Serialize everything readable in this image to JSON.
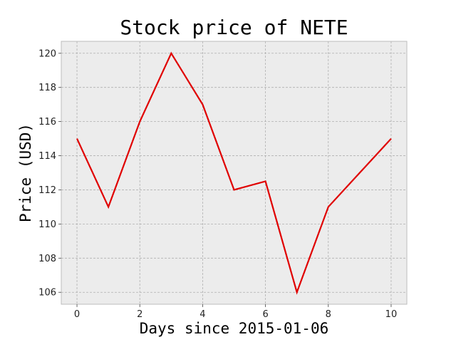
{
  "chart_data": {
    "type": "line",
    "title": "Stock price of NETE",
    "xlabel": "Days since 2015-01-06",
    "ylabel": "Price (USD)",
    "xlim": [
      -0.5,
      10.5
    ],
    "ylim": [
      105.3,
      120.7
    ],
    "xticks": [
      0,
      2,
      4,
      6,
      8,
      10
    ],
    "yticks": [
      106,
      108,
      110,
      112,
      114,
      116,
      118,
      120
    ],
    "grid": true,
    "series": [
      {
        "x": [
          0,
          1,
          2,
          3,
          4,
          5,
          6,
          7,
          8,
          10
        ],
        "y": [
          115,
          111,
          116,
          120,
          117,
          112,
          112.5,
          106,
          111,
          115
        ],
        "color": "#e00000"
      }
    ],
    "colors": {
      "plot_background": "#ececec",
      "grid": "#b0b0b0",
      "frame": "#bcbcbc"
    }
  }
}
